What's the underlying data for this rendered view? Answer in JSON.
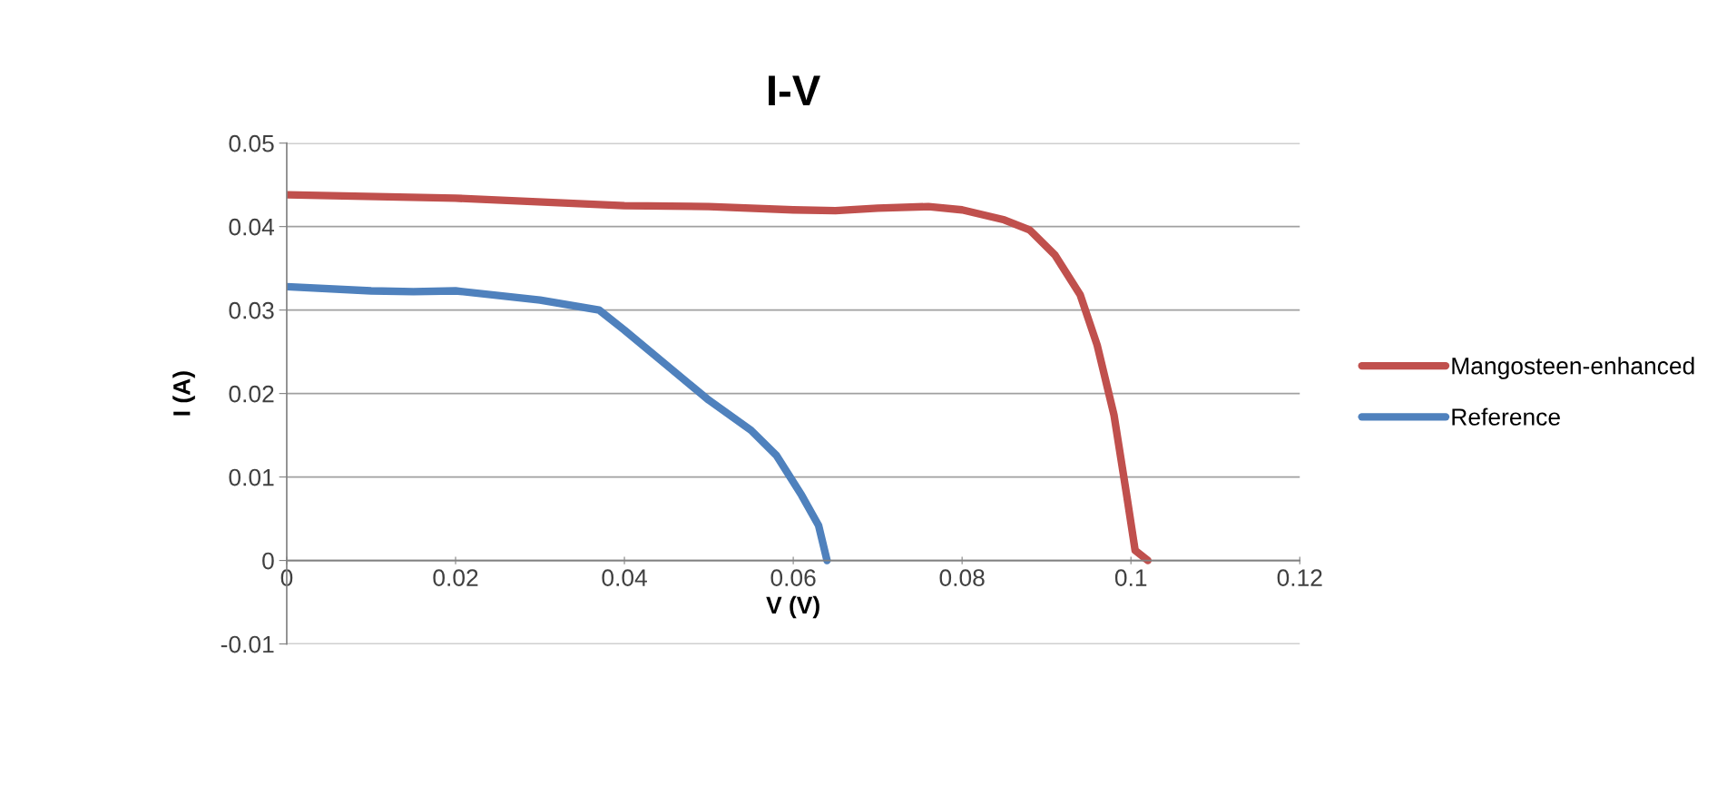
{
  "chart_data": {
    "type": "line",
    "title": "I-V",
    "xlabel": "V (V)",
    "ylabel": "I (A)",
    "xlim": [
      0,
      0.12
    ],
    "xticks": [
      0,
      0.02,
      0.04,
      0.06,
      0.08,
      0.1,
      0.12
    ],
    "ylim": [
      -0.01,
      0.05
    ],
    "yticks": [
      -0.01,
      0,
      0.01,
      0.02,
      0.03,
      0.04,
      0.05
    ],
    "grid": "y",
    "legend": "right",
    "marker": "none",
    "line_style": "solid",
    "series": [
      {
        "name": "Mangosteen-enhanced",
        "color": "#c0504d",
        "x": [
          0,
          0.02,
          0.04,
          0.05,
          0.06,
          0.065,
          0.07,
          0.076,
          0.08,
          0.085,
          0.088,
          0.091,
          0.094,
          0.096,
          0.098,
          0.0995,
          0.1005,
          0.102
        ],
        "values": [
          0.0438,
          0.0434,
          0.0425,
          0.0424,
          0.042,
          0.0419,
          0.0422,
          0.0424,
          0.042,
          0.0408,
          0.0396,
          0.0366,
          0.0318,
          0.0258,
          0.0174,
          0.0078,
          0.0012,
          0
        ]
      },
      {
        "name": "Reference",
        "color": "#4f81bd",
        "x": [
          0,
          0.01,
          0.015,
          0.02,
          0.03,
          0.037,
          0.04,
          0.045,
          0.05,
          0.055,
          0.058,
          0.061,
          0.063,
          0.064
        ],
        "values": [
          0.0328,
          0.0323,
          0.0322,
          0.0323,
          0.0312,
          0.03,
          0.0276,
          0.0234,
          0.0192,
          0.0156,
          0.0126,
          0.0078,
          0.0042,
          0
        ]
      }
    ]
  }
}
